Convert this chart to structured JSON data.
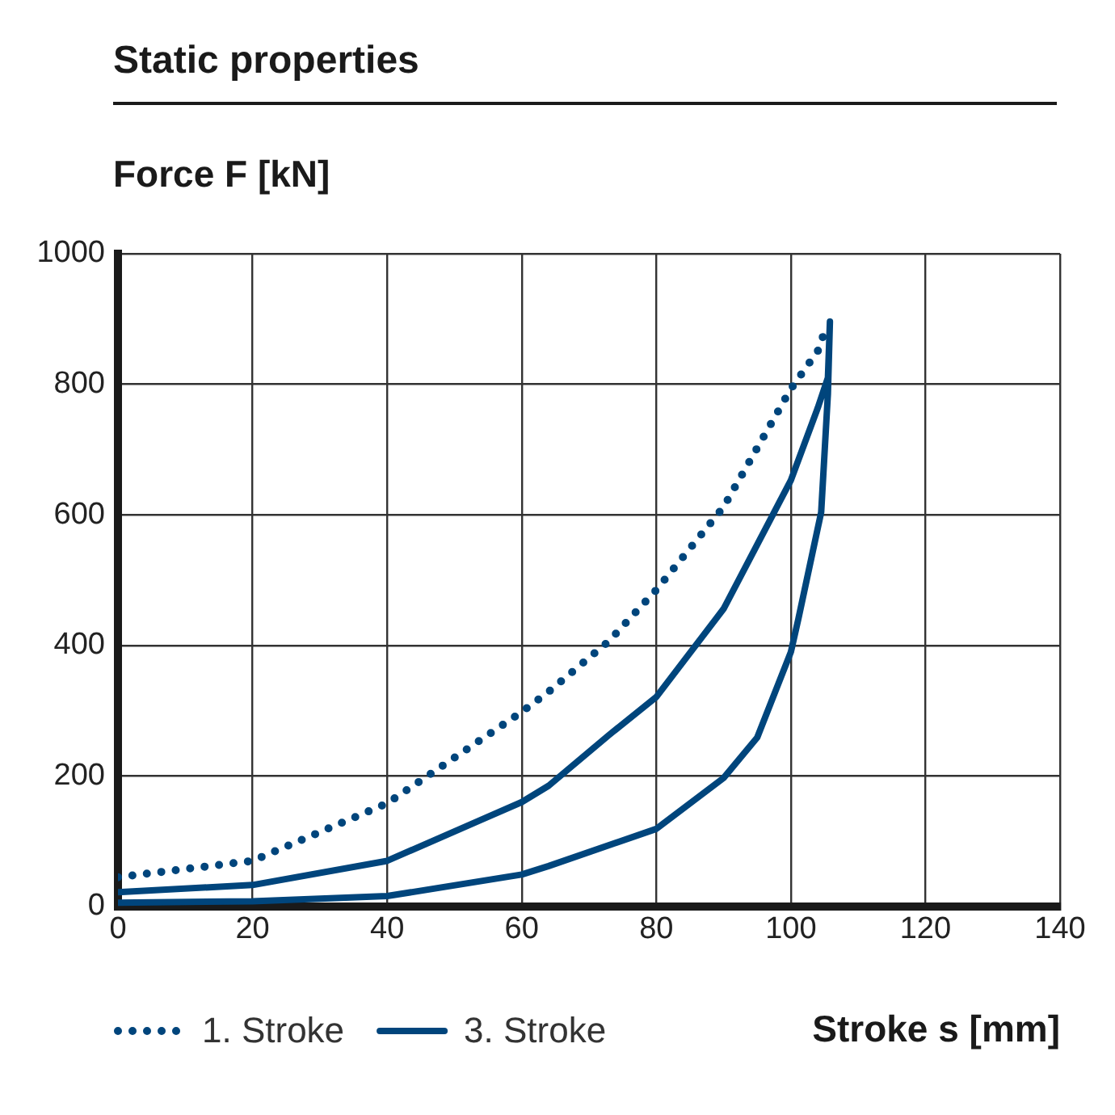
{
  "chart_data": {
    "type": "line",
    "title": "Static properties",
    "xlabel": "Stroke s [mm]",
    "ylabel": "Force F [kN]",
    "xlim": [
      0,
      140
    ],
    "xticks": [
      0,
      20,
      40,
      60,
      80,
      100,
      120,
      140
    ],
    "ylim": [
      0,
      1000
    ],
    "yticks": [
      0,
      200,
      400,
      600,
      800,
      1000
    ],
    "grid": true,
    "legend": "bottom left",
    "marker": "none",
    "series": [
      {
        "name": "1. Stroke",
        "color": "#00457c",
        "line_style": "dotted",
        "x": [
          0,
          20,
          40,
          60,
          64,
          73,
          80,
          90,
          100,
          104,
          105
        ],
        "values": [
          45,
          70,
          158,
          298,
          329,
          407,
          485,
          612,
          793,
          851,
          880
        ]
      },
      {
        "name": "3. Stroke",
        "color": "#00457c",
        "line_style": "solid",
        "x": [
          0,
          20,
          40,
          60,
          64,
          73,
          80,
          90,
          100,
          104,
          105.5,
          105.8,
          105.5,
          104.5,
          101.1,
          100,
          95,
          90,
          80,
          64,
          60,
          40,
          20,
          0
        ],
        "values": [
          22,
          33,
          70,
          160,
          185,
          263,
          321,
          456,
          653,
          764,
          810,
          896,
          785,
          604,
          440,
          390,
          259,
          197,
          119,
          62,
          49,
          16,
          8,
          6
        ]
      }
    ]
  }
}
